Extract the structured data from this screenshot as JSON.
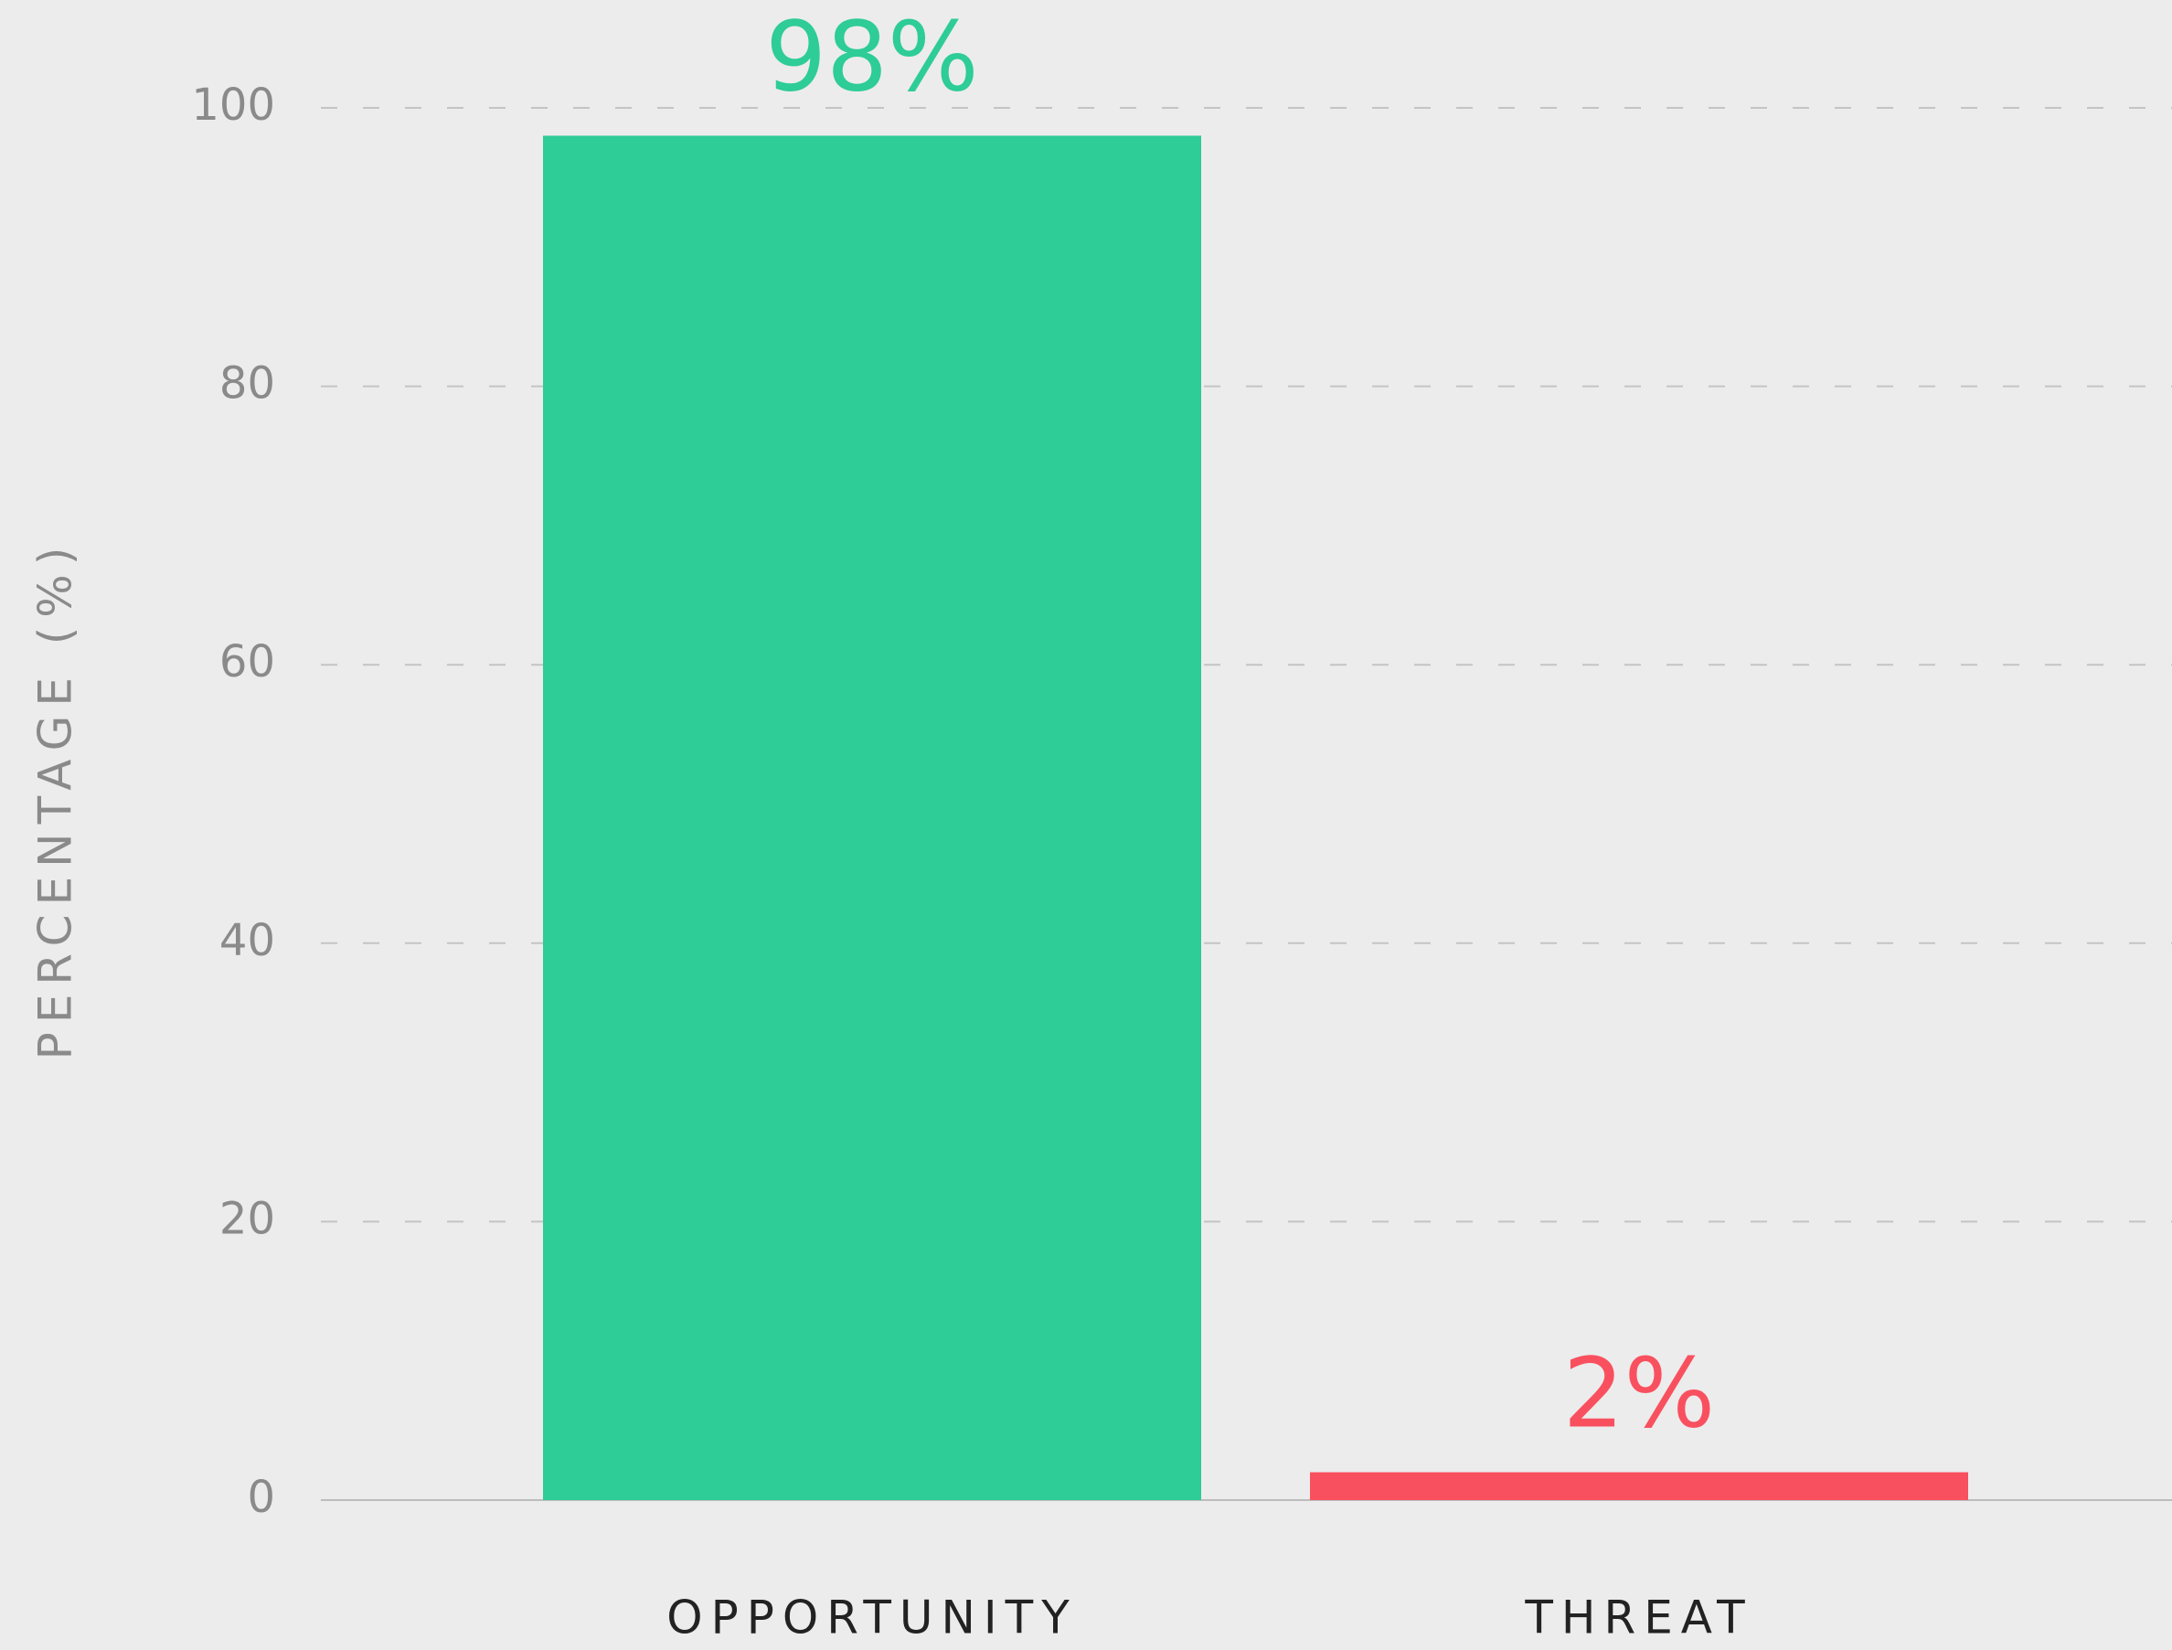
{
  "chart_data": {
    "type": "bar",
    "y_axis_label": "PERCENTAGE (%)",
    "categories": [
      "OPPORTUNITY",
      "THREAT"
    ],
    "values": [
      98,
      2
    ],
    "value_labels": [
      "98%",
      "2%"
    ],
    "colors": [
      "#2ecc96",
      "#f9505f"
    ],
    "ylim": [
      0,
      100
    ],
    "yticks": [
      0,
      20,
      40,
      60,
      80,
      100
    ],
    "grid": true
  }
}
